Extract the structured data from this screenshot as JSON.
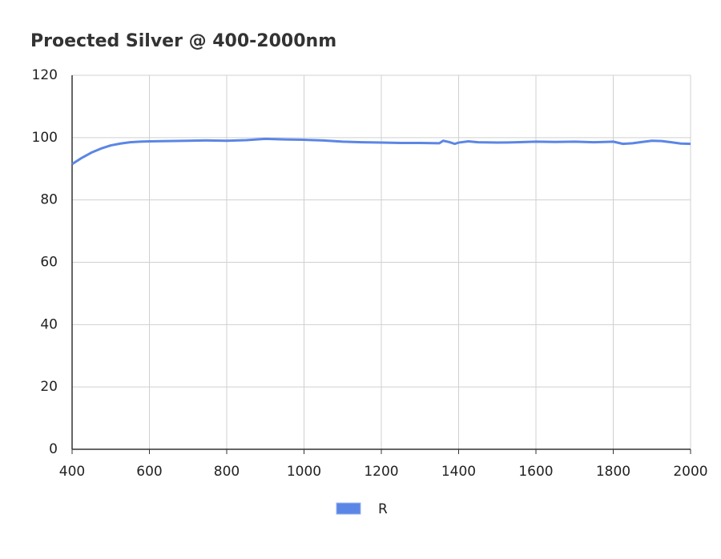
{
  "chart_data": {
    "type": "line",
    "title": "Proected Silver @ 400-2000nm",
    "x": [
      400,
      425,
      450,
      475,
      500,
      525,
      550,
      575,
      600,
      650,
      700,
      750,
      800,
      850,
      900,
      950,
      1000,
      1050,
      1100,
      1150,
      1200,
      1250,
      1300,
      1350,
      1360,
      1375,
      1390,
      1400,
      1425,
      1450,
      1500,
      1550,
      1600,
      1650,
      1700,
      1750,
      1800,
      1825,
      1850,
      1875,
      1900,
      1925,
      1950,
      1975,
      2000
    ],
    "series": [
      {
        "name": "R",
        "color": "#5b86e5",
        "values": [
          91.5,
          93.5,
          95.2,
          96.5,
          97.5,
          98.1,
          98.5,
          98.7,
          98.8,
          98.9,
          99.0,
          99.1,
          99.0,
          99.2,
          99.6,
          99.4,
          99.3,
          99.1,
          98.7,
          98.5,
          98.4,
          98.3,
          98.3,
          98.2,
          99.0,
          98.6,
          98.0,
          98.4,
          98.8,
          98.5,
          98.4,
          98.5,
          98.7,
          98.6,
          98.7,
          98.5,
          98.7,
          98.0,
          98.2,
          98.6,
          99.0,
          98.9,
          98.5,
          98.1,
          98.0
        ]
      }
    ],
    "xlim": [
      400,
      2000
    ],
    "xticks": [
      400,
      600,
      800,
      1000,
      1200,
      1400,
      1600,
      1800,
      2000
    ],
    "ylim": [
      0,
      120
    ],
    "yticks": [
      0,
      20,
      40,
      60,
      80,
      100,
      120
    ],
    "grid": true,
    "legend": "bottom"
  }
}
